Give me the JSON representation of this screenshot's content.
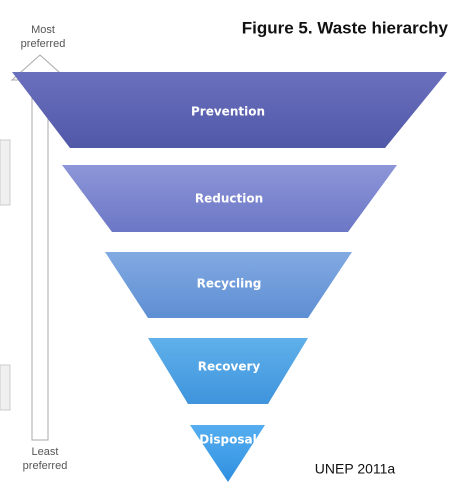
{
  "title": "Figure 5. Waste hierarchy",
  "top_label": [
    "Most",
    "preferred"
  ],
  "bottom_label": [
    "Least",
    "preferred"
  ],
  "levels": [
    "Prevention",
    "Reduction",
    "Recycling",
    "Recovery",
    "Disposal"
  ],
  "source": "UNEP 2011a"
}
